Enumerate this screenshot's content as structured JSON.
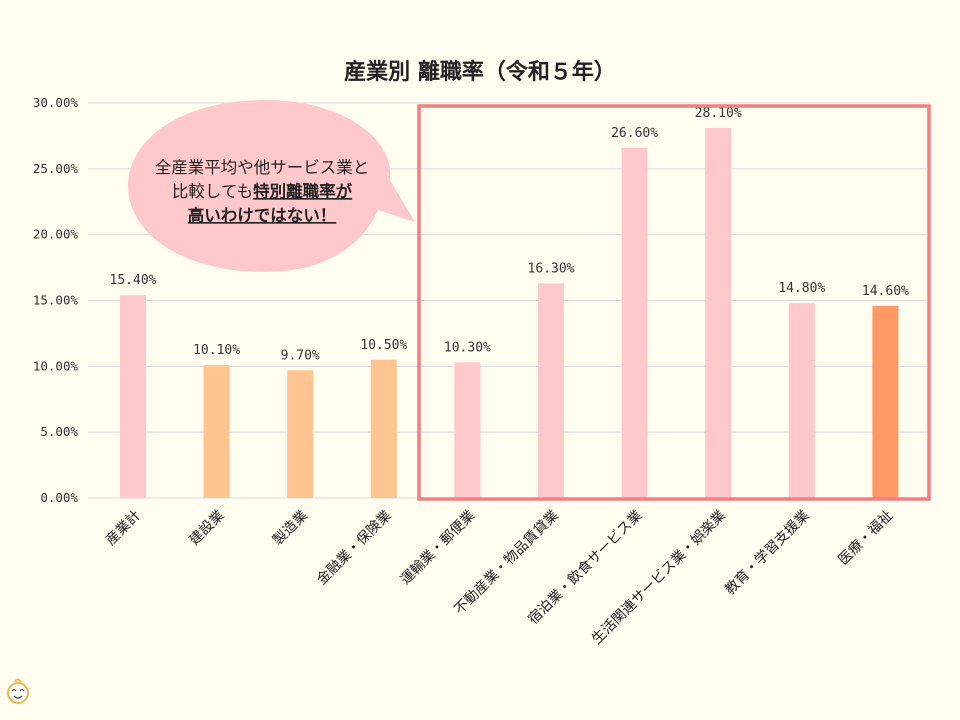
{
  "chart_data": {
    "type": "bar",
    "title": "産業別 離職率（令和５年）",
    "xlabel": "",
    "ylabel": "",
    "ylim": [
      0,
      30
    ],
    "yticks": [
      "0.00%",
      "5.00%",
      "10.00%",
      "15.00%",
      "20.00%",
      "25.00%",
      "30.00%"
    ],
    "grid": true,
    "categories": [
      "産業計",
      "建設業",
      "製造業",
      "金融業・保険業",
      "運輸業・郵便業",
      "不動産業・物品賃貸業",
      "宿泊業・飲食サービス業",
      "生活関連サービス業・娯楽業",
      "教育・学習支援業",
      "医療・福祉"
    ],
    "values": [
      15.4,
      10.1,
      9.7,
      10.5,
      10.3,
      16.3,
      26.6,
      28.1,
      14.8,
      14.6
    ],
    "value_labels": [
      "15.40%",
      "10.10%",
      "9.70%",
      "10.50%",
      "10.30%",
      "16.30%",
      "26.60%",
      "28.10%",
      "14.80%",
      "14.60%"
    ],
    "bar_colors": [
      "#ffc9cc",
      "#ffc48f",
      "#ffc48f",
      "#ffc48f",
      "#ffc9cc",
      "#ffc9cc",
      "#ffc9cc",
      "#ffc9cc",
      "#ffc9cc",
      "#ff9a66"
    ],
    "highlight_box_color": "#f07f86"
  },
  "callout": {
    "line1": "全産業平均や他サービス業と",
    "line2_plain": "比較しても",
    "line2_emph": "特別離職率が",
    "line3": "高いわけではない！",
    "fill_color": "#ffc9cc"
  },
  "logo": {
    "icon": "smiling-face-icon"
  }
}
